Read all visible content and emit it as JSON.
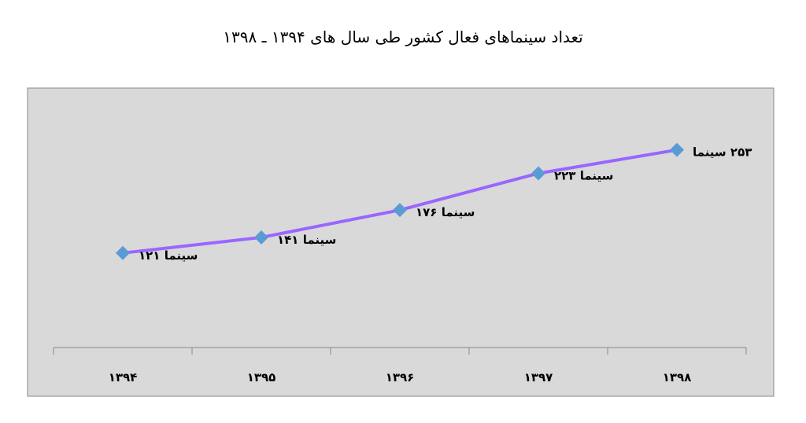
{
  "chart_data": {
    "type": "line",
    "title": "تعداد سینماهای فعال کشور طی سال های ۱۳۹۴ ـ ۱۳۹۸",
    "categories": [
      "۱۳۹۴",
      "۱۳۹۵",
      "۱۳۹۶",
      "۱۳۹۷",
      "۱۳۹۸"
    ],
    "series": [
      {
        "color": "#9966ff",
        "marker_color": "#5b9bd5",
        "values": [
          121,
          141,
          176,
          223,
          253
        ],
        "value_labels": [
          "سینما ۱۲۱",
          "سینما ۱۴۱",
          "سینما ۱۷۶",
          "سینما ۲۲۳",
          "۲۵۳ سینما"
        ]
      }
    ],
    "ylim": [
      0,
      300
    ]
  }
}
